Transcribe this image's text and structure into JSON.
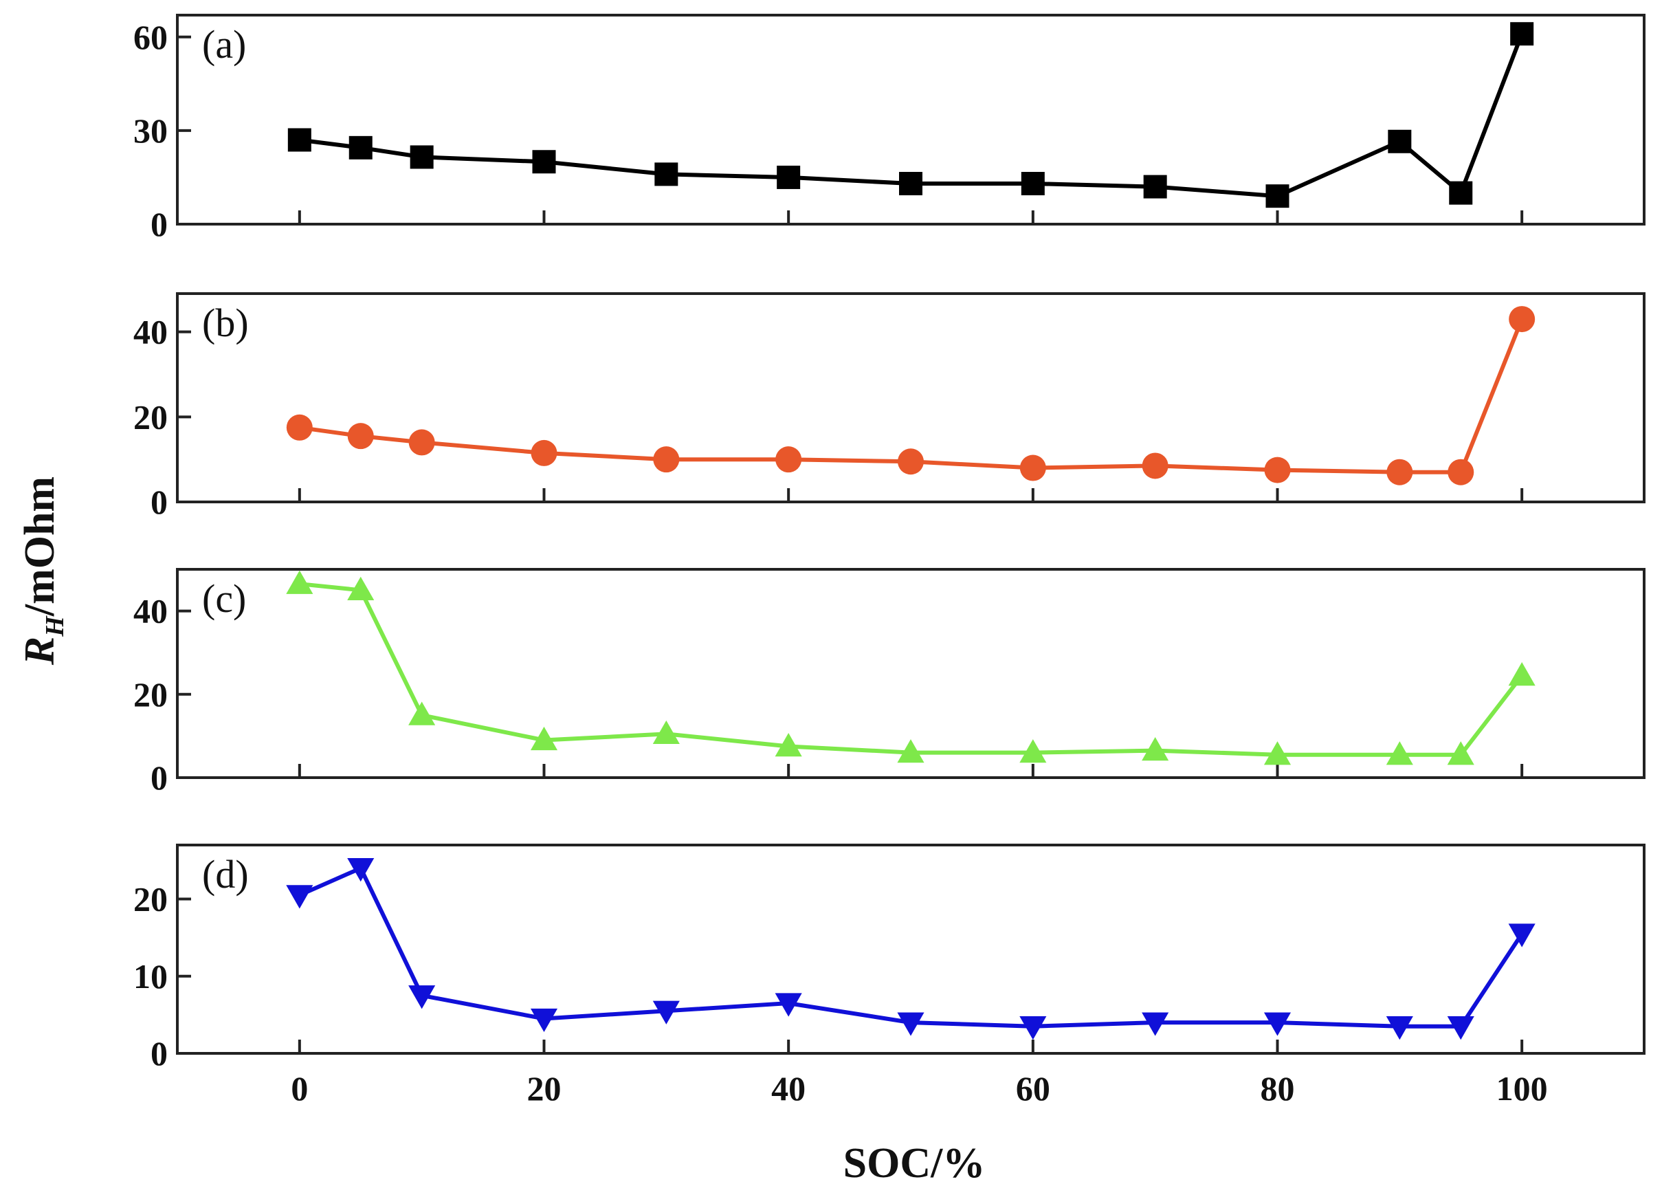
{
  "chart_data": {
    "type": "line",
    "xlabel": "SOC/%",
    "ylabel_main": "R",
    "ylabel_sub": "H",
    "ylabel_rest": "/mOhm",
    "x": [
      0,
      5,
      10,
      20,
      30,
      40,
      50,
      60,
      70,
      80,
      90,
      95,
      100
    ],
    "xlim": [
      -10,
      110
    ],
    "xticks": [
      0,
      20,
      40,
      60,
      80,
      100
    ],
    "panels": [
      {
        "label": "(a)",
        "color": "#000000",
        "marker": "square",
        "ylim": [
          0,
          67
        ],
        "yticks": [
          0,
          30,
          60
        ],
        "values": [
          27,
          24.5,
          21.5,
          20,
          16,
          15,
          13,
          13,
          12,
          9,
          26.5,
          10,
          61
        ]
      },
      {
        "label": "(b)",
        "color": "#e8572a",
        "marker": "circle",
        "ylim": [
          0,
          49
        ],
        "yticks": [
          0,
          20,
          40
        ],
        "values": [
          17.5,
          15.5,
          14,
          11.5,
          10,
          10,
          9.5,
          8,
          8.5,
          7.5,
          7,
          7,
          43
        ]
      },
      {
        "label": "(c)",
        "color": "#7ee84a",
        "marker": "triangle-up",
        "ylim": [
          0,
          50
        ],
        "yticks": [
          0,
          20,
          40
        ],
        "values": [
          46.5,
          45,
          15,
          9,
          10.5,
          7.5,
          6,
          6,
          6.5,
          5.5,
          5.5,
          5.5,
          24.5
        ]
      },
      {
        "label": "(d)",
        "color": "#1010d8",
        "marker": "triangle-down",
        "ylim": [
          0,
          27
        ],
        "yticks": [
          0,
          10,
          20
        ],
        "values": [
          20.5,
          24,
          7.5,
          4.5,
          5.5,
          6.5,
          4,
          3.5,
          4,
          4,
          3.5,
          3.5,
          15.5
        ]
      }
    ]
  }
}
